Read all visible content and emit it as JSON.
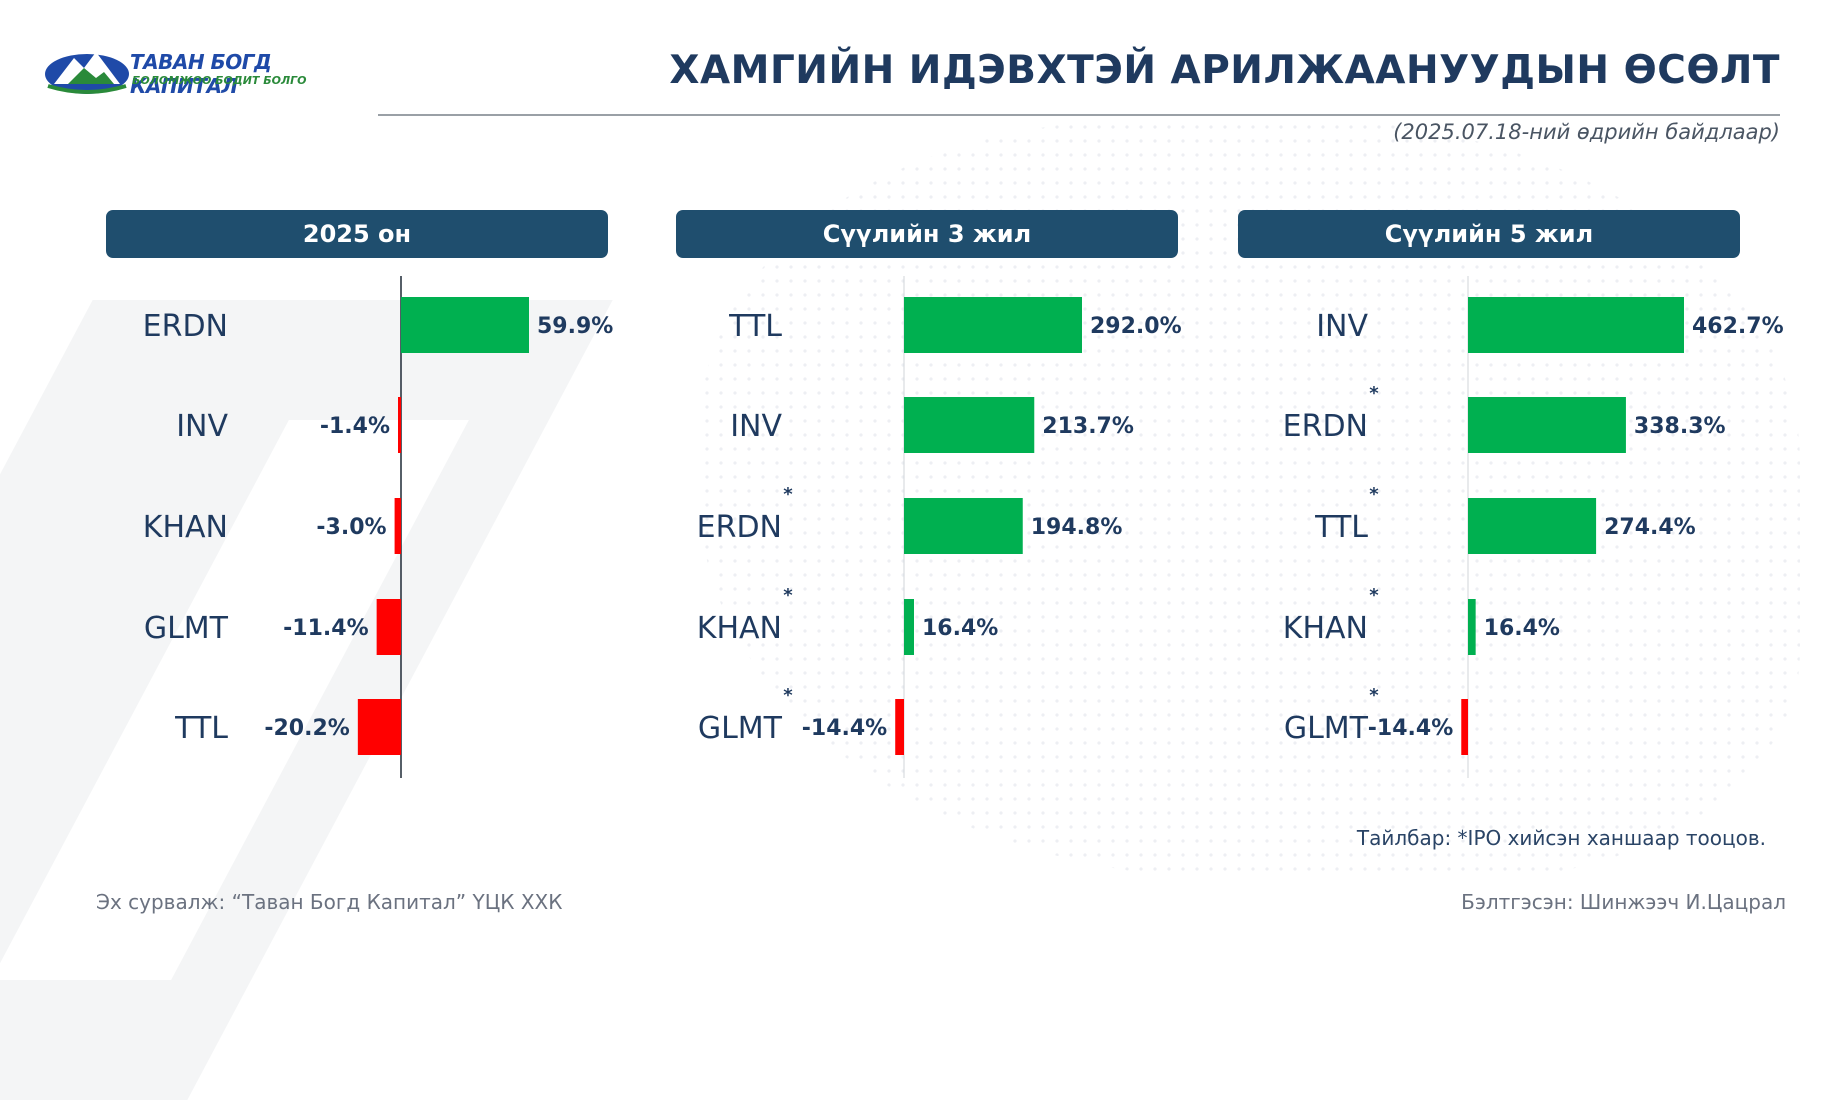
{
  "header": {
    "title": "ХАМГИЙН ИДЭВХТЭЙ АРИЛЖААНУУДЫН ӨСӨЛТ",
    "date_note": "(2025.07.18-ний өдрийн байдлаар)"
  },
  "logo": {
    "line1": "ТАВАН БОГД КАПИТАЛ",
    "line2": "БОЛОМЖОО БОДИТ БОЛГО"
  },
  "colors": {
    "positive": "#00b050",
    "negative": "#ff0000",
    "header_bg": "#1f4e6e",
    "text": "#1f3a5f"
  },
  "chart_data": [
    {
      "type": "bar",
      "orientation": "horizontal",
      "title": "2025 он",
      "categories": [
        "ERDN",
        "INV",
        "KHAN",
        "GLMT",
        "TTL"
      ],
      "values": [
        59.9,
        -1.4,
        -3.0,
        -11.4,
        -20.2
      ],
      "value_labels": [
        "59.9%",
        "-1.4%",
        "-3.0%",
        "-11.4%",
        "-20.2%"
      ],
      "ipo_flag": [
        false,
        false,
        false,
        false,
        false
      ],
      "xlim": [
        -20.2,
        59.9
      ]
    },
    {
      "type": "bar",
      "orientation": "horizontal",
      "title": "Сүүлийн 3 жил",
      "categories": [
        "TTL",
        "INV",
        "ERDN",
        "KHAN",
        "GLMT"
      ],
      "values": [
        292.0,
        213.7,
        194.8,
        16.4,
        -14.4
      ],
      "value_labels": [
        "292.0%",
        "213.7%",
        "194.8%",
        "16.4%",
        "-14.4%"
      ],
      "ipo_flag": [
        false,
        false,
        true,
        true,
        true
      ],
      "xlim": [
        -14.4,
        292.0
      ]
    },
    {
      "type": "bar",
      "orientation": "horizontal",
      "title": "Сүүлийн 5 жил",
      "categories": [
        "INV",
        "ERDN",
        "TTL",
        "KHAN",
        "GLMT"
      ],
      "values": [
        462.7,
        338.3,
        274.4,
        16.4,
        -14.4
      ],
      "value_labels": [
        "462.7%",
        "338.3%",
        "274.4%",
        "16.4%",
        "-14.4%"
      ],
      "ipo_flag": [
        false,
        true,
        true,
        true,
        true
      ],
      "xlim": [
        -14.4,
        462.7
      ]
    }
  ],
  "footnote": "Тайлбар: *IPO хийсэн ханшаар тооцов.",
  "source": "Эх сурвалж: “Таван Богд Капитал” ҮЦК ХХК",
  "prepared_by": "Бэлтгэсэн: Шинжээч И.Цацрал"
}
